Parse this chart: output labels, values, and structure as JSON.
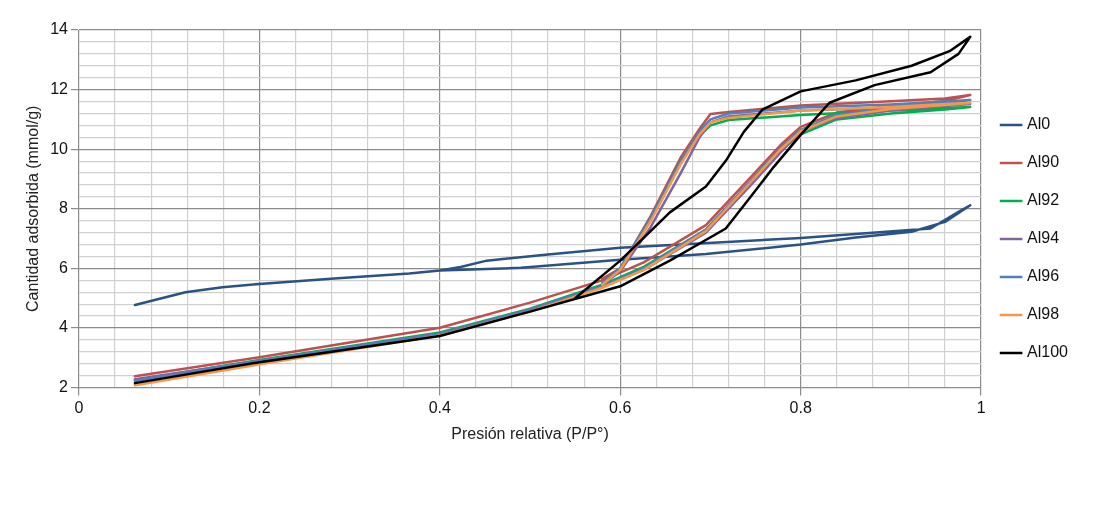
{
  "chart_data": {
    "type": "line",
    "xlabel": "Presión relativa (P/P°)",
    "ylabel": "Cantidad adsorbida (mmol/g)",
    "xlim": [
      0,
      1
    ],
    "ylim": [
      2,
      14
    ],
    "xticks": [
      0,
      {
        "value": 0.04,
        "label": null
      },
      {
        "value": 0.08,
        "label": null
      },
      {
        "value": 0.12,
        "label": null
      },
      {
        "value": 0.16,
        "label": null
      },
      0.2,
      {
        "value": 0.24,
        "label": null
      },
      {
        "value": 0.28,
        "label": null
      },
      {
        "value": 0.32,
        "label": null
      },
      {
        "value": 0.36,
        "label": null
      },
      0.4,
      {
        "value": 0.44,
        "label": null
      },
      {
        "value": 0.48,
        "label": null
      },
      {
        "value": 0.52,
        "label": null
      },
      {
        "value": 0.56,
        "label": null
      },
      0.6,
      {
        "value": 0.64,
        "label": null
      },
      {
        "value": 0.68,
        "label": null
      },
      {
        "value": 0.72,
        "label": null
      },
      {
        "value": 0.76,
        "label": null
      },
      0.8,
      {
        "value": 0.84,
        "label": null
      },
      {
        "value": 0.88,
        "label": null
      },
      {
        "value": 0.92,
        "label": null
      },
      {
        "value": 0.96,
        "label": null
      },
      1
    ],
    "yticks": [
      2,
      {
        "value": 2.4,
        "label": null
      },
      {
        "value": 2.8,
        "label": null
      },
      {
        "value": 3.2,
        "label": null
      },
      {
        "value": 3.6,
        "label": null
      },
      4,
      {
        "value": 4.4,
        "label": null
      },
      {
        "value": 4.8,
        "label": null
      },
      {
        "value": 5.2,
        "label": null
      },
      {
        "value": 5.6,
        "label": null
      },
      6,
      {
        "value": 6.4,
        "label": null
      },
      {
        "value": 6.8,
        "label": null
      },
      {
        "value": 7.2,
        "label": null
      },
      {
        "value": 7.6,
        "label": null
      },
      8,
      {
        "value": 8.4,
        "label": null
      },
      {
        "value": 8.8,
        "label": null
      },
      {
        "value": 9.2,
        "label": null
      },
      {
        "value": 9.6,
        "label": null
      },
      10,
      {
        "value": 10.4,
        "label": null
      },
      {
        "value": 10.8,
        "label": null
      },
      {
        "value": 11.2,
        "label": null
      },
      {
        "value": 11.6,
        "label": null
      },
      12,
      {
        "value": 12.4,
        "label": null
      },
      {
        "value": 12.8,
        "label": null
      },
      {
        "value": 13.2,
        "label": null
      },
      {
        "value": 13.6,
        "label": null
      },
      14
    ],
    "grid": true,
    "legend": "right",
    "marker": "none",
    "line_style": "solid",
    "series": [
      {
        "name": "Al0",
        "color": "#2a5286",
        "x": [
          0.062,
          0.118,
          0.159,
          0.2,
          0.283,
          0.366,
          0.4,
          0.49,
          0.6,
          0.695,
          0.8,
          0.861,
          0.923,
          0.96,
          0.988,
          0.975,
          0.944,
          0.8,
          0.6,
          0.514,
          0.452,
          0.423,
          0.4
        ],
        "values": [
          4.77,
          5.2,
          5.37,
          5.48,
          5.66,
          5.83,
          5.93,
          6.02,
          6.29,
          6.48,
          6.8,
          7.04,
          7.23,
          7.56,
          8.12,
          7.9,
          7.34,
          7.02,
          6.69,
          6.45,
          6.26,
          6.05,
          5.93
        ]
      },
      {
        "name": "Al90",
        "color": "#c0504d",
        "x": [
          0.062,
          0.2,
          0.4,
          0.5,
          0.58,
          0.626,
          0.695,
          0.745,
          0.778,
          0.8,
          0.84,
          0.9,
          0.96,
          0.988,
          0.96,
          0.9,
          0.8,
          0.72,
          0.7,
          0.688,
          0.667,
          0.634,
          0.6,
          0.58
        ],
        "values": [
          2.38,
          3.02,
          4.01,
          4.85,
          5.6,
          6.2,
          7.45,
          9.07,
          10.15,
          10.75,
          11.23,
          11.45,
          11.62,
          11.82,
          11.7,
          11.61,
          11.47,
          11.25,
          11.18,
          10.69,
          9.72,
          7.77,
          6.0,
          5.65
        ]
      },
      {
        "name": "Al92",
        "color": "#00b050",
        "x": [
          0.062,
          0.2,
          0.4,
          0.5,
          0.58,
          0.626,
          0.695,
          0.745,
          0.778,
          0.8,
          0.84,
          0.9,
          0.96,
          0.988,
          0.96,
          0.9,
          0.8,
          0.72,
          0.7,
          0.688,
          0.667,
          0.634,
          0.6,
          0.58
        ],
        "values": [
          2.25,
          2.93,
          3.85,
          4.65,
          5.45,
          6.05,
          7.3,
          8.9,
          9.95,
          10.5,
          11.0,
          11.2,
          11.33,
          11.42,
          11.38,
          11.3,
          11.15,
          10.98,
          10.8,
          10.45,
          9.6,
          7.7,
          6.0,
          5.5
        ]
      },
      {
        "name": "Al94",
        "color": "#8064a2",
        "x": [
          0.062,
          0.2,
          0.4,
          0.5,
          0.58,
          0.626,
          0.695,
          0.745,
          0.778,
          0.8,
          0.84,
          0.9,
          0.96,
          0.988,
          0.96,
          0.9,
          0.8,
          0.72,
          0.7,
          0.688,
          0.667,
          0.634,
          0.6,
          0.58
        ],
        "values": [
          2.28,
          2.9,
          3.82,
          4.62,
          5.4,
          5.95,
          7.2,
          8.8,
          9.9,
          10.6,
          11.05,
          11.3,
          11.45,
          11.52,
          11.48,
          11.4,
          11.3,
          11.1,
          10.9,
          10.4,
          9.2,
          7.4,
          5.9,
          5.45
        ]
      },
      {
        "name": "Al96",
        "color": "#4f81bd",
        "x": [
          0.062,
          0.2,
          0.4,
          0.5,
          0.58,
          0.626,
          0.695,
          0.745,
          0.778,
          0.8,
          0.84,
          0.9,
          0.96,
          0.988,
          0.96,
          0.9,
          0.8,
          0.72,
          0.7,
          0.688,
          0.667,
          0.634,
          0.6,
          0.58
        ],
        "values": [
          2.22,
          2.9,
          3.8,
          4.6,
          5.4,
          6.0,
          7.3,
          8.95,
          10.05,
          10.65,
          11.15,
          11.4,
          11.55,
          11.65,
          11.6,
          11.5,
          11.4,
          11.2,
          11.0,
          10.6,
          9.6,
          7.7,
          6.0,
          5.5
        ]
      },
      {
        "name": "Al98",
        "color": "#f79646",
        "x": [
          0.062,
          0.2,
          0.4,
          0.5,
          0.58,
          0.626,
          0.695,
          0.745,
          0.778,
          0.8,
          0.84,
          0.9,
          0.96,
          0.988,
          0.96,
          0.9,
          0.8,
          0.72,
          0.7,
          0.688,
          0.667,
          0.634,
          0.6,
          0.58
        ],
        "values": [
          2.08,
          2.78,
          3.75,
          4.55,
          5.35,
          5.95,
          7.25,
          8.9,
          10.0,
          10.6,
          11.1,
          11.35,
          11.48,
          11.55,
          11.52,
          11.42,
          11.3,
          11.05,
          10.9,
          10.5,
          9.5,
          7.6,
          5.95,
          5.45
        ]
      },
      {
        "name": "Al100",
        "color": "#000000",
        "x": [
          0.062,
          0.2,
          0.4,
          0.5,
          0.6,
          0.655,
          0.717,
          0.745,
          0.77,
          0.8,
          0.832,
          0.882,
          0.944,
          0.975,
          0.988,
          0.965,
          0.923,
          0.861,
          0.8,
          0.758,
          0.737,
          0.717,
          0.695,
          0.655,
          0.6,
          0.55
        ],
        "values": [
          2.15,
          2.85,
          3.73,
          4.55,
          5.4,
          6.26,
          7.34,
          8.42,
          9.4,
          10.48,
          11.56,
          12.15,
          12.58,
          13.2,
          13.77,
          13.29,
          12.8,
          12.31,
          11.94,
          11.34,
          10.58,
          9.61,
          8.75,
          7.88,
          6.26,
          5.0
        ]
      }
    ]
  }
}
